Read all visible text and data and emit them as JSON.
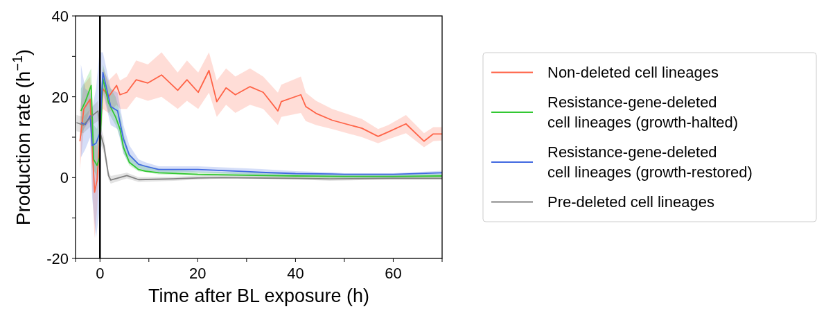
{
  "chart_data": {
    "type": "line",
    "xlabel": "Time after BL exposure (h)",
    "ylabel": "Production rate (h$^{−1}$)",
    "xlim": [
      -5,
      70
    ],
    "xticks": [
      {
        "value": -5,
        "label": null
      },
      0,
      {
        "value": 10,
        "label": null
      },
      20,
      {
        "value": 30,
        "label": null
      },
      40,
      {
        "value": 50,
        "label": null
      },
      60,
      {
        "value": 70,
        "label": null
      }
    ],
    "ylim": [
      -20,
      40
    ],
    "yticks": [
      -20,
      {
        "value": -10,
        "label": null
      },
      0,
      {
        "value": 10,
        "label": null
      },
      20,
      {
        "value": 30,
        "label": null
      },
      40
    ],
    "legend": "right",
    "grid": false,
    "line_style": "solid",
    "marker": "none",
    "ref_lines": [
      {
        "axis": "x",
        "value": 0,
        "color": "#000000"
      }
    ],
    "series": [
      {
        "name": "Non-deleted cell lineages",
        "color": "#ff6347",
        "x": [
          -4.1,
          -3.3,
          -2,
          -1.6,
          -1.1,
          -0.6,
          0.6,
          1.75,
          3.4,
          4.1,
          5.5,
          7.4,
          9.8,
          12.6,
          15.9,
          17.8,
          20.1,
          22.3,
          23.9,
          25.8,
          27.7,
          30.7,
          33.4,
          36.4,
          37.1,
          41.1,
          42.1,
          44.2,
          47.5,
          53.6,
          56.9,
          59,
          62.6,
          66.3,
          68.2,
          70
        ],
        "values": [
          9,
          17,
          19.4,
          7.9,
          -3.6,
          -0.7,
          22,
          20,
          22.8,
          20.5,
          21.1,
          24.2,
          23.4,
          25.4,
          21.6,
          24.2,
          21.1,
          26.5,
          18.8,
          22.2,
          20.5,
          22.5,
          21.1,
          16.5,
          18.8,
          20.5,
          17.6,
          15.9,
          14.2,
          12.2,
          10.2,
          11.3,
          13.3,
          9,
          10.8,
          10.8
        ],
        "lower": [
          2,
          12,
          14,
          -2,
          -15,
          -8,
          17,
          16,
          18,
          17,
          17,
          20,
          19,
          20,
          17,
          19,
          17,
          21,
          15,
          18,
          16,
          18,
          17,
          13,
          15,
          16,
          14,
          13,
          12,
          10,
          8.5,
          9.5,
          11,
          7.5,
          9,
          9.2
        ],
        "upper": [
          17,
          23,
          25,
          18,
          8,
          8,
          27,
          24,
          26,
          24,
          25,
          29,
          28,
          31,
          26,
          29,
          26,
          31,
          24,
          27,
          25,
          27,
          25,
          21,
          23,
          25,
          21,
          19,
          17,
          14.5,
          12,
          13,
          15.5,
          11,
          12.5,
          12.5
        ]
      },
      {
        "name": "Resistance-gene-deleted cell lineages (growth-halted)",
        "color": "#32c832",
        "x": [
          -3.9,
          -3,
          -1.8,
          -1.3,
          -0.6,
          -0.1,
          0.6,
          1.75,
          3.2,
          4.1,
          4.8,
          6,
          7.9,
          9.3,
          12,
          20,
          30,
          40,
          50,
          60,
          70
        ],
        "values": [
          16.5,
          18.8,
          22.8,
          4.5,
          3,
          5,
          24.5,
          18.5,
          15,
          12,
          7.5,
          3.8,
          2,
          1.6,
          1.2,
          0.8,
          0.6,
          0.4,
          0.3,
          0.3,
          0.4
        ],
        "lower": [
          10,
          13,
          18,
          2,
          0,
          3,
          22,
          16,
          13,
          10,
          6,
          3,
          1.5,
          1.4,
          0.8,
          0.5,
          0.3,
          0,
          -0.2,
          -0.2,
          0
        ],
        "upper": [
          22,
          24,
          27,
          13,
          12,
          15,
          28,
          23,
          20,
          16,
          11,
          6,
          3.5,
          3,
          2.2,
          1.5,
          1.3,
          1,
          0.8,
          0.8,
          1
        ]
      },
      {
        "name": "Resistance-gene-deleted cell lineages (growth-restored)",
        "color": "#4169e1",
        "x": [
          -3.9,
          -3,
          -2,
          -1.6,
          -0.8,
          -0.1,
          0.6,
          2.2,
          3.6,
          4.8,
          6,
          7.9,
          9.3,
          12,
          20,
          30,
          33,
          40,
          47.5,
          50,
          60,
          70
        ],
        "values": [
          13.6,
          13.1,
          15.3,
          7.9,
          8.5,
          10.8,
          26,
          17.6,
          16.5,
          9.6,
          5.6,
          3.3,
          2.8,
          2,
          2,
          1.5,
          1.3,
          1,
          0.9,
          0.8,
          0.8,
          1.2
        ],
        "lower": [
          5,
          7,
          10,
          -5,
          -15,
          -8,
          21,
          13,
          12,
          6,
          3.5,
          2.3,
          1.8,
          1.3,
          1.3,
          0.8,
          0.6,
          0.4,
          0.1,
          0,
          0,
          0.4
        ],
        "upper": [
          28,
          22,
          21,
          17,
          22,
          31,
          31,
          22,
          21,
          13,
          8,
          4.5,
          3.8,
          2.8,
          2.8,
          2.3,
          2.1,
          1.6,
          1.3,
          1.1,
          1.1,
          1.7
        ]
      },
      {
        "name": "Pre-deleted cell lineages",
        "color": "#808080",
        "x": [
          -4.8,
          -3.4,
          -1.6,
          -0.4,
          0.1,
          0.8,
          1.75,
          2.2,
          5.5,
          7.9,
          15,
          20,
          25,
          40,
          47,
          60,
          70
        ],
        "values": [
          13.6,
          13,
          15.3,
          16.5,
          10.8,
          7.9,
          0.5,
          -0.6,
          0.5,
          -0.5,
          -0.3,
          -0.1,
          0,
          -0.2,
          -0.3,
          -0.2,
          -0.2
        ],
        "lower": [
          11.5,
          11,
          13,
          14,
          8.5,
          6,
          -0.5,
          -1.5,
          -0.2,
          -1.1,
          -0.8,
          -0.5,
          -0.2,
          -0.4,
          -0.8,
          -0.4,
          -0.4
        ],
        "upper": [
          15.5,
          15,
          17.5,
          19,
          13,
          10,
          1.5,
          0.4,
          1.2,
          0.1,
          0.2,
          0.5,
          0.8,
          0.4,
          0.2,
          0.4,
          0.4
        ]
      }
    ]
  }
}
